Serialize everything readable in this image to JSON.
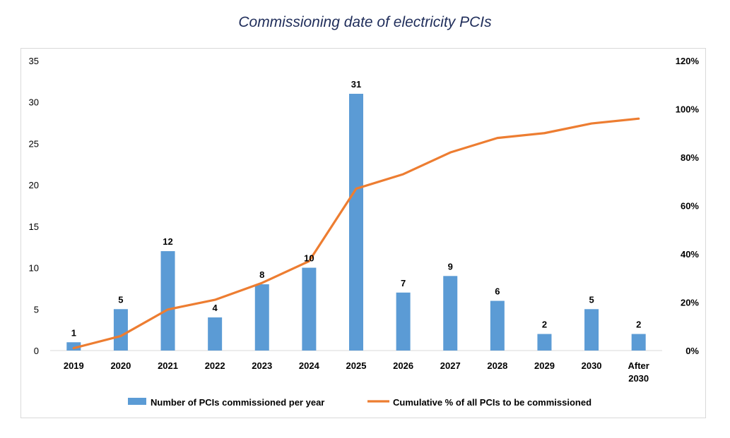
{
  "chart_data": {
    "type": "bar",
    "title": "Commissioning date of electricity PCIs",
    "categories": [
      "2019",
      "2020",
      "2021",
      "2022",
      "2023",
      "2024",
      "2025",
      "2026",
      "2027",
      "2028",
      "2029",
      "2030",
      "After 2030"
    ],
    "series": [
      {
        "name": "Number of PCIs commissioned per year",
        "type": "bar",
        "axis": "left",
        "color": "#5b9bd5",
        "values": [
          1,
          5,
          12,
          4,
          8,
          10,
          31,
          7,
          9,
          6,
          2,
          5,
          2
        ]
      },
      {
        "name": "Cumulative % of all PCIs to be commissioned",
        "type": "line",
        "axis": "right",
        "color": "#ed7d31",
        "values": [
          1,
          6,
          17,
          21,
          28,
          37,
          67,
          73,
          82,
          88,
          90,
          94,
          96
        ]
      }
    ],
    "y_left": {
      "min": 0,
      "max": 35,
      "ticks": [
        "0",
        "5",
        "10",
        "15",
        "20",
        "25",
        "30",
        "35"
      ]
    },
    "y_right": {
      "min": 0,
      "max": 120,
      "ticks": [
        "0%",
        "20%",
        "40%",
        "60%",
        "80%",
        "100%",
        "120%"
      ]
    },
    "grid": false,
    "legend_position": "bottom",
    "data_labels": true
  }
}
